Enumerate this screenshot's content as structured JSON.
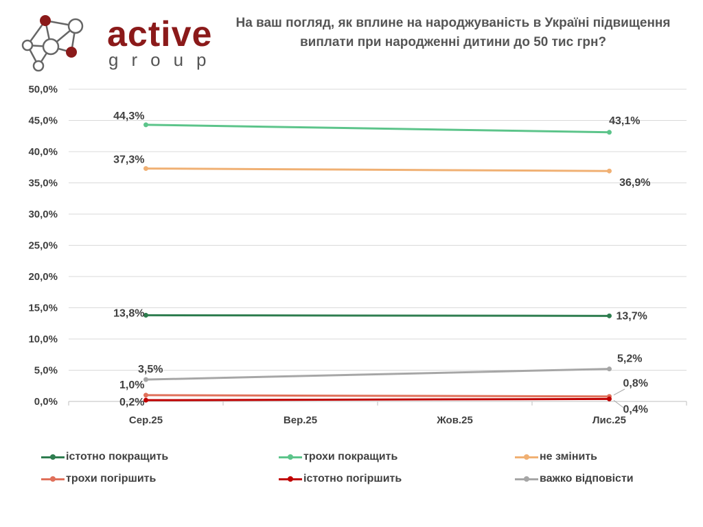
{
  "logo": {
    "word": "active",
    "sub": "group"
  },
  "chart_data": {
    "type": "line",
    "title": "На ваш погляд, як вплине на народжуваність в Україні підвищення виплати при народженні дитини до 50 тис грн?",
    "categories": [
      "Сер.25",
      "Вер.25",
      "Жов.25",
      "Лис.25"
    ],
    "ylim": [
      0,
      50
    ],
    "yticks": [
      "0,0%",
      "5,0%",
      "10,0%",
      "15,0%",
      "20,0%",
      "25,0%",
      "30,0%",
      "35,0%",
      "40,0%",
      "45,0%",
      "50,0%"
    ],
    "grid": true,
    "legend_position": "bottom",
    "series": [
      {
        "name": "істотно покращить",
        "color": "#2e7d4f",
        "x": [
          "Сер.25",
          "Лис.25"
        ],
        "values": [
          13.8,
          13.7
        ],
        "labels": [
          "13,8%",
          "13,7%"
        ]
      },
      {
        "name": "трохи покращить",
        "color": "#5cc48a",
        "x": [
          "Сер.25",
          "Лис.25"
        ],
        "values": [
          44.3,
          43.1
        ],
        "labels": [
          "44,3%",
          "43,1%"
        ]
      },
      {
        "name": "не змінить",
        "color": "#f0b073",
        "x": [
          "Сер.25",
          "Лис.25"
        ],
        "values": [
          37.3,
          36.9
        ],
        "labels": [
          "37,3%",
          "36,9%"
        ]
      },
      {
        "name": "трохи погіршить",
        "color": "#e0705a",
        "x": [
          "Сер.25",
          "Лис.25"
        ],
        "values": [
          1.0,
          0.8
        ],
        "labels": [
          "1,0%",
          "0,8%"
        ]
      },
      {
        "name": "істотно погіршить",
        "color": "#c00000",
        "x": [
          "Сер.25",
          "Лис.25"
        ],
        "values": [
          0.2,
          0.4
        ],
        "labels": [
          "0,2%",
          "0,4%"
        ]
      },
      {
        "name": "важко відповісти",
        "color": "#a6a6a6",
        "x": [
          "Сер.25",
          "Лис.25"
        ],
        "values": [
          3.5,
          5.2
        ],
        "labels": [
          "3,5%",
          "5,2%"
        ]
      }
    ]
  }
}
